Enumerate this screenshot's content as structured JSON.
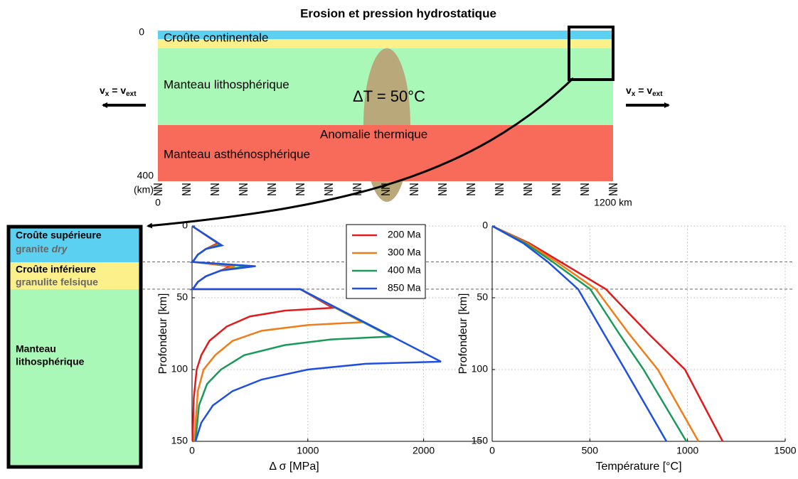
{
  "diagram": {
    "title": "Erosion et pression hydrostatique",
    "depth_top": "0",
    "depth_bottom": "400",
    "depth_unit": "(km)",
    "x_start": "0",
    "x_end": "1200 km",
    "layers": [
      "Croûte continentale",
      "Manteau lithosphérique",
      "Manteau asthénosphérique"
    ],
    "plume_label": "ΔT = 50°C",
    "anomaly_label": "Anomalie thermique",
    "velocity": {
      "v": "v",
      "left_sub": "x",
      "equals": " = ",
      "right_sub": "ext"
    }
  },
  "column": {
    "upper_crust": "Croûte supérieure",
    "upper_rock": "granite",
    "upper_rock_note": "dry",
    "lower_crust": "Croûte inférieure",
    "lower_rock": "granulite felsique",
    "mantle": [
      "Manteau",
      "lithosphérique"
    ]
  },
  "chart_data": [
    {
      "type": "line",
      "xlabel": "Δ σ [MPa]",
      "ylabel": "Profondeur [km]",
      "xlim": [
        0,
        2500
      ],
      "ylim": [
        0,
        150
      ],
      "y_inverted": true,
      "xticks": [
        0,
        1000,
        2000
      ],
      "yticks": [
        0,
        50,
        100,
        150
      ],
      "grid": true,
      "legend": "upper right",
      "reference_lines": [
        25,
        44
      ],
      "series": [
        {
          "name": "200 Ma",
          "color": "#e01b1b",
          "x": [
            0,
            221,
            120,
            50,
            15,
            0,
            330,
            250,
            120,
            50,
            15,
            0,
            935,
            1215,
            800,
            500,
            300,
            150,
            80,
            40,
            15,
            5
          ],
          "values": [
            0,
            12,
            16,
            20,
            24,
            25,
            28,
            31,
            35,
            39,
            43,
            44,
            44,
            57,
            59,
            63,
            70,
            80,
            90,
            100,
            120,
            150
          ]
        },
        {
          "name": "300 Ma",
          "color": "#f07d1a",
          "x": [
            0,
            235,
            120,
            50,
            15,
            0,
            370,
            250,
            120,
            50,
            15,
            0,
            935,
            1470,
            1000,
            600,
            350,
            200,
            100,
            50,
            20
          ],
          "values": [
            0,
            12.5,
            16,
            20,
            24,
            25,
            28,
            31,
            35,
            39,
            43,
            44,
            44,
            67,
            69,
            73,
            80,
            90,
            100,
            115,
            150
          ]
        },
        {
          "name": "400 Ma",
          "color": "#1a9a5a",
          "x": [
            0,
            245,
            120,
            50,
            15,
            0,
            480,
            250,
            120,
            50,
            15,
            0,
            935,
            1715,
            1200,
            800,
            450,
            250,
            130,
            60,
            30
          ],
          "values": [
            0,
            13,
            16,
            20,
            24,
            25,
            28,
            31,
            35,
            39,
            43,
            44,
            44,
            77,
            79,
            83,
            90,
            100,
            110,
            125,
            150
          ]
        },
        {
          "name": "850 Ma",
          "color": "#1f4fe0",
          "x": [
            0,
            258,
            120,
            50,
            15,
            0,
            550,
            250,
            120,
            50,
            15,
            0,
            935,
            2150,
            1500,
            1000,
            600,
            350,
            180,
            80,
            30
          ],
          "values": [
            0,
            13.5,
            16,
            20,
            24,
            25,
            28,
            31,
            35,
            39,
            43,
            44,
            44,
            94.5,
            96,
            100,
            107,
            115,
            125,
            137,
            150
          ]
        }
      ]
    },
    {
      "type": "line",
      "xlabel": "Température [°C]",
      "ylabel": "Profondeur [km]",
      "xlim": [
        0,
        1500
      ],
      "ylim": [
        0,
        150
      ],
      "y_inverted": true,
      "xticks": [
        0,
        500,
        1000,
        1500
      ],
      "yticks": [
        0,
        50,
        100,
        150
      ],
      "grid": true,
      "series": [
        {
          "color": "#e01b1b",
          "x": [
            0,
            190,
            350,
            582,
            800,
            987,
            1180
          ],
          "values": [
            0,
            12,
            25,
            44,
            75,
            100,
            150
          ]
        },
        {
          "color": "#f07d1a",
          "x": [
            0,
            180,
            330,
            531,
            700,
            848,
            1056
          ],
          "values": [
            0,
            12,
            25,
            44,
            75,
            100,
            150
          ]
        },
        {
          "color": "#1a9a5a",
          "x": [
            0,
            170,
            310,
            502,
            650,
            775,
            994
          ],
          "values": [
            0,
            12,
            25,
            44,
            75,
            100,
            150
          ]
        },
        {
          "color": "#1f4fe0",
          "x": [
            0,
            160,
            285,
            440,
            572,
            680,
            892
          ],
          "values": [
            0,
            12,
            25,
            44,
            75,
            100,
            150
          ]
        }
      ]
    }
  ]
}
